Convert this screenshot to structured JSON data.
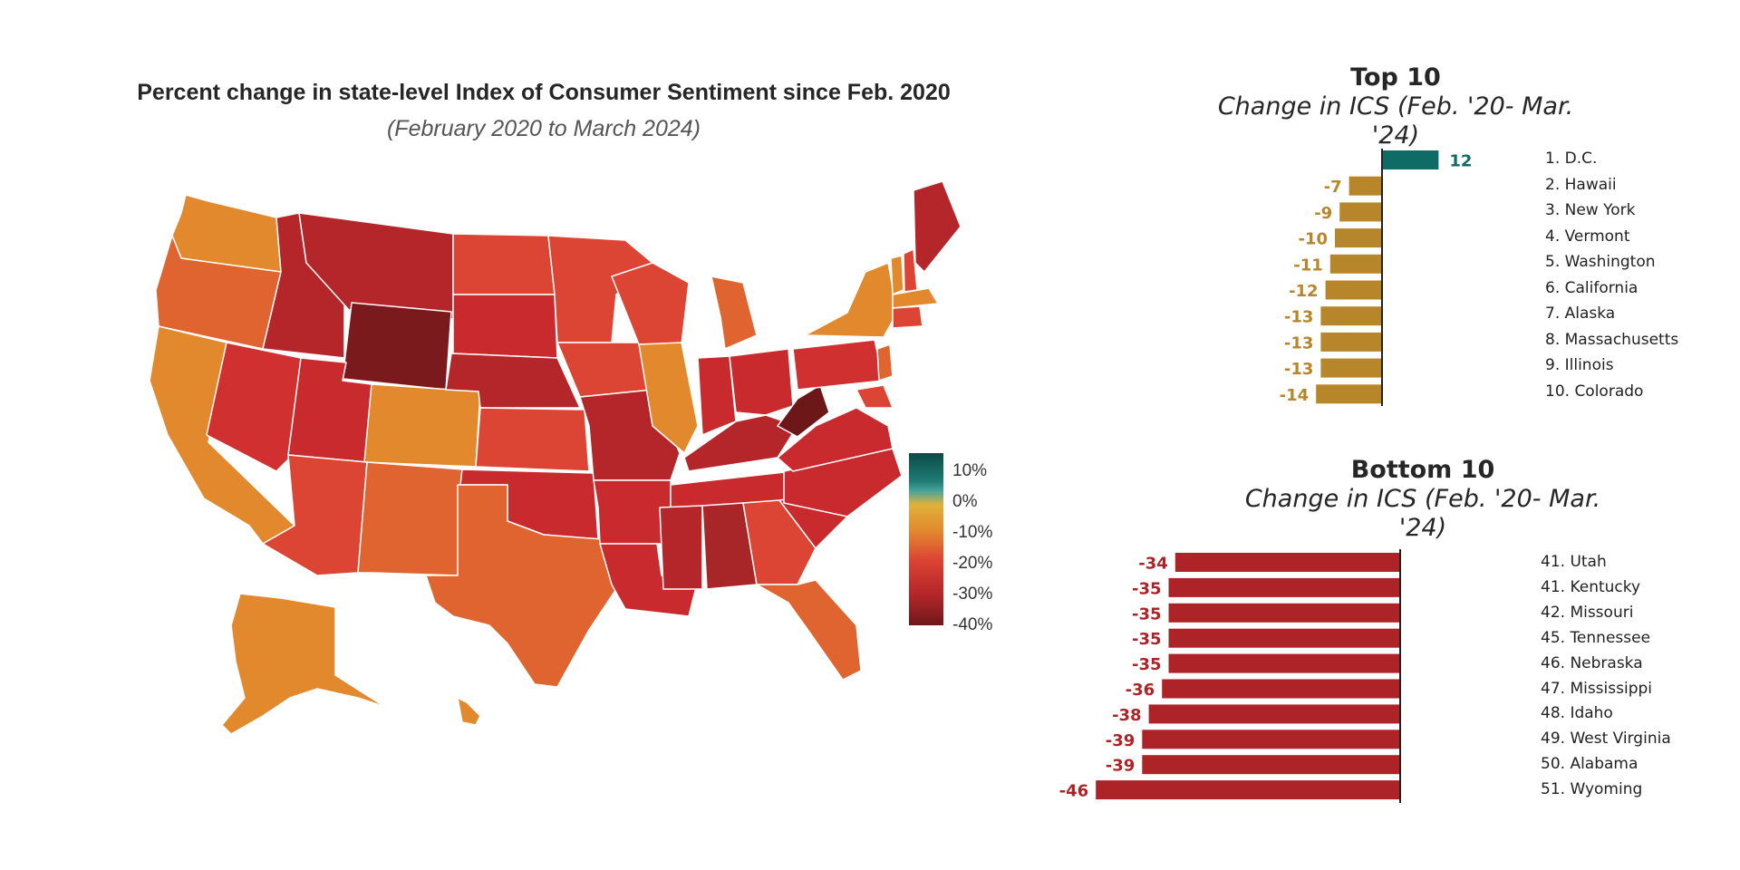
{
  "map": {
    "title": "Percent change in state-level Index of Consumer Sentiment since Feb. 2020",
    "subtitle": "(February 2020 to March 2024)",
    "legend": {
      "labels": [
        "10%",
        "0%",
        "-10%",
        "-20%",
        "-30%",
        "-40%"
      ],
      "colors": [
        "#0c4a47",
        "#1e7b74",
        "#e0b23a",
        "#e2892e",
        "#dc4434",
        "#b4262a",
        "#6e1719"
      ]
    }
  },
  "chart_data": [
    {
      "type": "bar",
      "title": "Top 10",
      "subtitle": "Change in ICS (Feb. '20- Mar. '24)",
      "categories": [
        "1. D.C.",
        "2. Hawaii",
        "3. New York",
        "4. Vermont",
        "5. Washington",
        "6. California",
        "7. Alaska",
        "8. Massachusetts",
        "9. Illinois",
        "10. Colorado"
      ],
      "values": [
        12,
        -7,
        -9,
        -10,
        -11,
        -12,
        -13,
        -13,
        -13,
        -14
      ],
      "colors": {
        "positive": "#0f6b66",
        "negative": "#b8862a"
      },
      "orientation": "horizontal"
    },
    {
      "type": "bar",
      "title": "Bottom 10",
      "subtitle": "Change in ICS (Feb. '20- Mar. '24)",
      "categories": [
        "41. Utah",
        "41. Kentucky",
        "42. Missouri",
        "45. Tennessee",
        "46. Nebraska",
        "47. Mississippi",
        "48. Idaho",
        "49. West Virginia",
        "50. Alabama",
        "51. Wyoming"
      ],
      "values": [
        -34,
        -35,
        -35,
        -35,
        -35,
        -36,
        -38,
        -39,
        -39,
        -46
      ],
      "colors": {
        "negative": "#ad2328"
      },
      "orientation": "horizontal"
    }
  ]
}
